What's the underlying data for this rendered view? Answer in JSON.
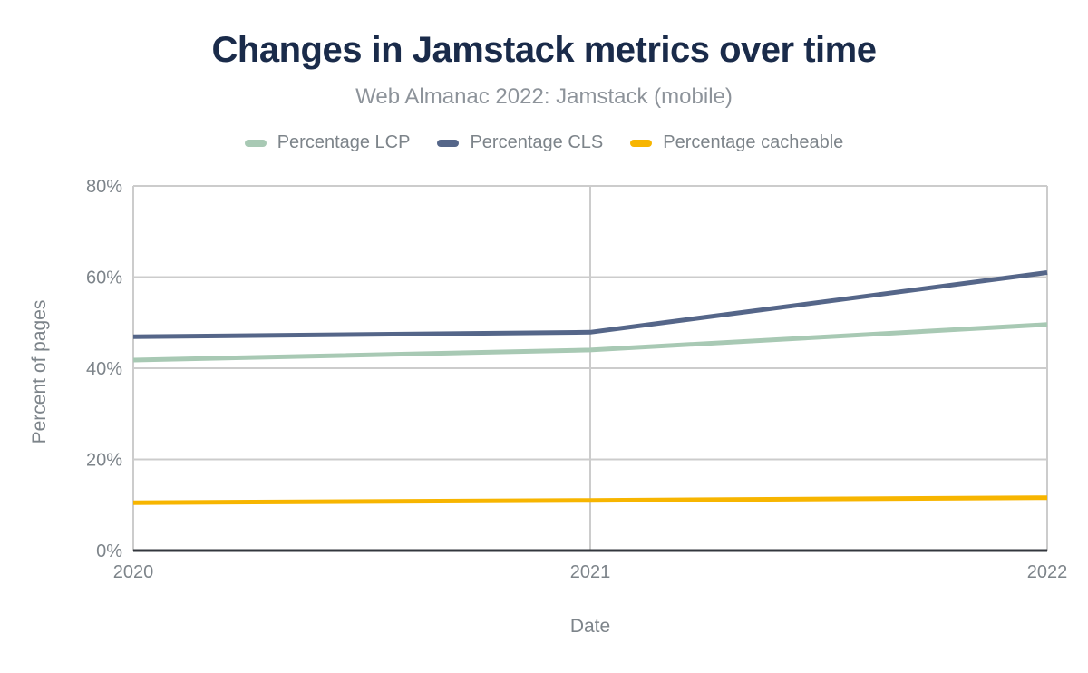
{
  "colors": {
    "background": "#ffffff",
    "title": "#1a2b4a",
    "subtitle": "#8d939a",
    "axis_text": "#7d848a",
    "gridline": "#cccccc",
    "baseline": "#33373d"
  },
  "chart_data": {
    "type": "line",
    "title": "Changes in Jamstack metrics over time",
    "subtitle": "Web Almanac 2022: Jamstack (mobile)",
    "xlabel": "Date",
    "ylabel": "Percent of pages",
    "x": [
      "2020",
      "2021",
      "2022"
    ],
    "ylim": [
      0,
      80
    ],
    "yticks": [
      0,
      20,
      40,
      60,
      80
    ],
    "ytick_format": "{v}%",
    "grid": true,
    "legend_position": "top",
    "series": [
      {
        "name": "Percentage LCP",
        "color": "#a8c9b4",
        "values": [
          41.8,
          44.0,
          49.6
        ]
      },
      {
        "name": "Percentage CLS",
        "color": "#556689",
        "values": [
          46.9,
          47.9,
          61.0
        ]
      },
      {
        "name": "Percentage cacheable",
        "color": "#f7b500",
        "values": [
          10.5,
          11.0,
          11.6
        ]
      }
    ]
  }
}
